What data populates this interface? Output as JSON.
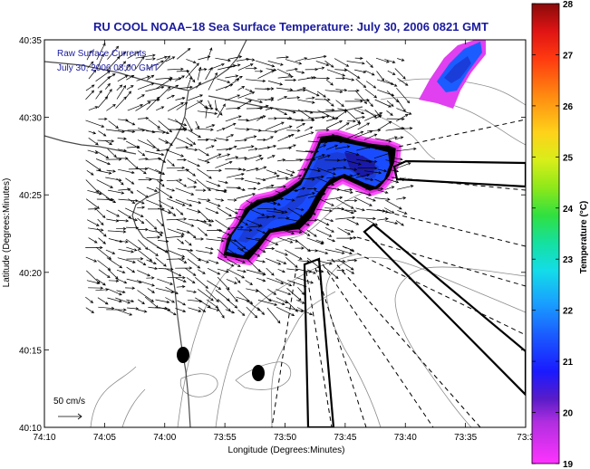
{
  "header": {
    "title": "RU COOL  NOAA–18  Sea Surface Temperature:  July 30, 2006 0821 GMT"
  },
  "overlay": {
    "line1": "Raw Surface Currents",
    "line2": "July 30, 2006 08:00 GMT"
  },
  "axes": {
    "xlabel": "Longitude (Degrees:Minutes)",
    "ylabel": "Latitude (Degrees:Minutes)",
    "xticks": [
      "74:10",
      "74:05",
      "74:00",
      "73:55",
      "73:50",
      "73:45",
      "73:40",
      "73:35",
      "73:3"
    ],
    "yticks": [
      "40:35",
      "40:30",
      "40:25",
      "40:20",
      "40:15",
      "40:10"
    ]
  },
  "scale": {
    "label": "50 cm/s"
  },
  "colorbar": {
    "title": "Temperature (°C)",
    "ticks": [
      "28",
      "27",
      "26",
      "25",
      "24",
      "23",
      "22",
      "21",
      "20",
      "19"
    ],
    "min": 19,
    "max": 28
  },
  "colors": {
    "title_text": "#1a1aa0",
    "overlay_text": "#1a1aa0",
    "sst_warm": "#1a5cff",
    "sst_cold": "#ff33ff"
  }
}
